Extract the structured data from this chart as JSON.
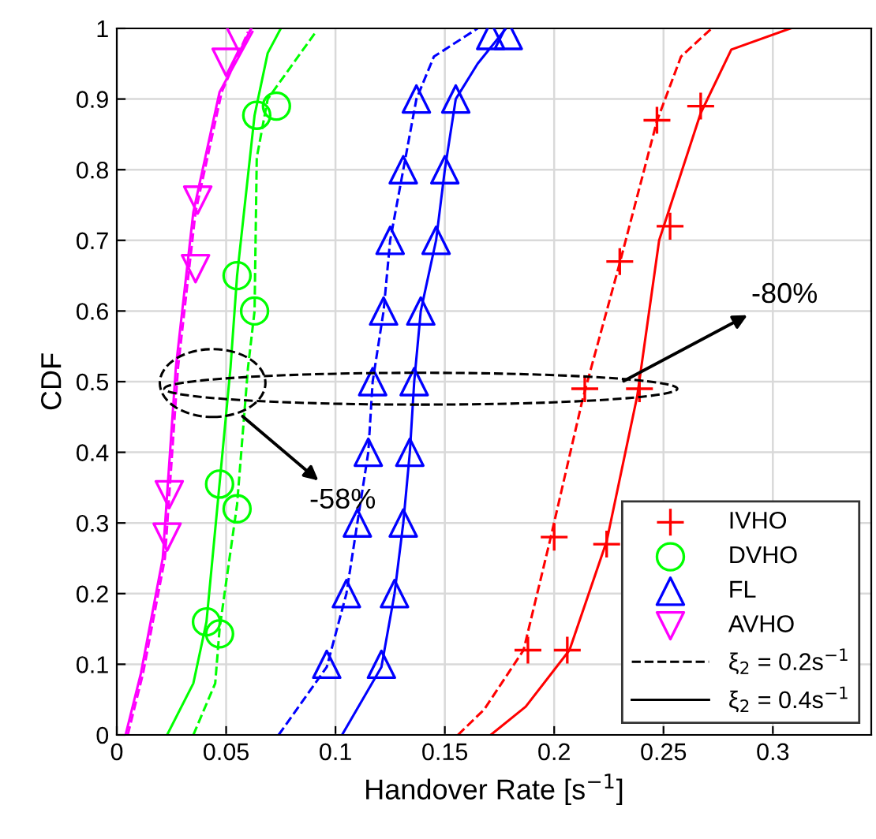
{
  "chart_data": {
    "type": "line",
    "xlabel": "Handover Rate [s$^{−1}$]",
    "ylabel": "CDF",
    "xlim": [
      0,
      0.345
    ],
    "ylim": [
      0,
      1
    ],
    "xticks": [
      0,
      0.05,
      0.1,
      0.15,
      0.2,
      0.25,
      0.3
    ],
    "yticks": [
      0,
      0.1,
      0.2,
      0.3,
      0.4,
      0.5,
      0.6,
      0.7,
      0.8,
      0.9,
      1
    ],
    "grid": true,
    "legend": "bottom right",
    "series": [
      {
        "color": "#ff0000",
        "line_style": "dashed",
        "x": [
          0.156,
          0.168,
          0.186,
          0.198,
          0.213,
          0.23,
          0.247,
          0.258,
          0.272
        ],
        "values": [
          0,
          0.036,
          0.12,
          0.274,
          0.475,
          0.668,
          0.869,
          0.96,
          1.0
        ]
      },
      {
        "color": "#ff0000",
        "line_style": "solid",
        "x": [
          0.171,
          0.187,
          0.207,
          0.224,
          0.238,
          0.248,
          0.267,
          0.281,
          0.308
        ],
        "values": [
          0,
          0.04,
          0.12,
          0.274,
          0.48,
          0.7,
          0.88,
          0.97,
          1.0
        ]
      },
      {
        "color": "#00ff00",
        "line_style": "dashed",
        "x": [
          0.035,
          0.045,
          0.047,
          0.055,
          0.06,
          0.063,
          0.064,
          0.069,
          0.091
        ],
        "values": [
          0,
          0.073,
          0.15,
          0.326,
          0.52,
          0.6,
          0.817,
          0.9,
          0.995
        ]
      },
      {
        "color": "#00ff00",
        "line_style": "solid",
        "x": [
          0.023,
          0.035,
          0.041,
          0.047,
          0.052,
          0.055,
          0.063,
          0.069,
          0.075
        ],
        "values": [
          0,
          0.073,
          0.16,
          0.356,
          0.52,
          0.65,
          0.877,
          0.965,
          1.0
        ]
      },
      {
        "color": "#0000ff",
        "line_style": "dashed",
        "x": [
          0.074,
          0.096,
          0.105,
          0.11,
          0.115,
          0.117,
          0.122,
          0.125,
          0.131,
          0.137,
          0.145,
          0.165
        ],
        "values": [
          0,
          0.096,
          0.2,
          0.3,
          0.4,
          0.5,
          0.6,
          0.7,
          0.8,
          0.9,
          0.96,
          1.0
        ]
      },
      {
        "color": "#0000ff",
        "line_style": "solid",
        "x": [
          0.103,
          0.121,
          0.127,
          0.131,
          0.134,
          0.136,
          0.139,
          0.146,
          0.15,
          0.155,
          0.165,
          0.178
        ],
        "values": [
          0,
          0.096,
          0.2,
          0.3,
          0.4,
          0.5,
          0.6,
          0.7,
          0.8,
          0.9,
          0.95,
          1.0
        ]
      },
      {
        "color": "#ff00ff",
        "line_style": "dashed",
        "x": [
          0.005,
          0.012,
          0.022,
          0.028,
          0.036,
          0.048,
          0.06
        ],
        "values": [
          0,
          0.087,
          0.25,
          0.52,
          0.74,
          0.91,
          0.995
        ]
      },
      {
        "color": "#ff00ff",
        "line_style": "solid",
        "x": [
          0.004,
          0.011,
          0.021,
          0.027,
          0.035,
          0.047,
          0.062
        ],
        "values": [
          0,
          0.087,
          0.25,
          0.52,
          0.74,
          0.91,
          0.995
        ]
      },
      {
        "type": "scatter",
        "name": "IVHO",
        "color": "#ff0000",
        "marker": "cross",
        "x": [
          0.188,
          0.2,
          0.214,
          0.23,
          0.247,
          0.206,
          0.224,
          0.239,
          0.253,
          0.267
        ],
        "values": [
          0.12,
          0.28,
          0.49,
          0.67,
          0.87,
          0.12,
          0.27,
          0.49,
          0.72,
          0.89
        ]
      },
      {
        "type": "scatter",
        "name": "DVHO",
        "color": "#00ff00",
        "marker": "circle",
        "x": [
          0.041,
          0.047,
          0.055,
          0.064,
          0.047,
          0.055,
          0.063,
          0.073
        ],
        "values": [
          0.16,
          0.355,
          0.65,
          0.877,
          0.143,
          0.32,
          0.6,
          0.89
        ]
      },
      {
        "type": "scatter",
        "name": "FL",
        "color": "#0000ff",
        "marker": "triangle",
        "x": [
          0.096,
          0.105,
          0.11,
          0.115,
          0.117,
          0.122,
          0.125,
          0.131,
          0.137,
          0.171,
          0.121,
          0.127,
          0.131,
          0.134,
          0.136,
          0.139,
          0.146,
          0.15,
          0.155,
          0.179
        ],
        "values": [
          0.1,
          0.2,
          0.3,
          0.4,
          0.5,
          0.6,
          0.7,
          0.8,
          0.9,
          0.99,
          0.1,
          0.2,
          0.3,
          0.4,
          0.5,
          0.6,
          0.7,
          0.8,
          0.9,
          0.99
        ]
      },
      {
        "type": "scatter",
        "name": "AVHO",
        "color": "#ff00ff",
        "marker": "triangle_down",
        "x": [
          0.056,
          0.05,
          0.037,
          0.036,
          0.024,
          0.023
        ],
        "values": [
          0.985,
          0.952,
          0.757,
          0.66,
          0.34,
          0.28
        ]
      },
      {
        "name": "ξ$_{2}$ = 0.2s$^{−1}$",
        "color": "#000000",
        "line_style": "dashed"
      },
      {
        "name": "ξ$_{2}$ = 0.4s$^{−1}$",
        "color": "#000000",
        "line_style": "solid"
      }
    ],
    "annotations": [
      {
        "text": "-58%",
        "x": 0.056,
        "y": 0.455
      },
      {
        "text": "-80%",
        "x": 0.23,
        "y": 0.498
      }
    ]
  }
}
